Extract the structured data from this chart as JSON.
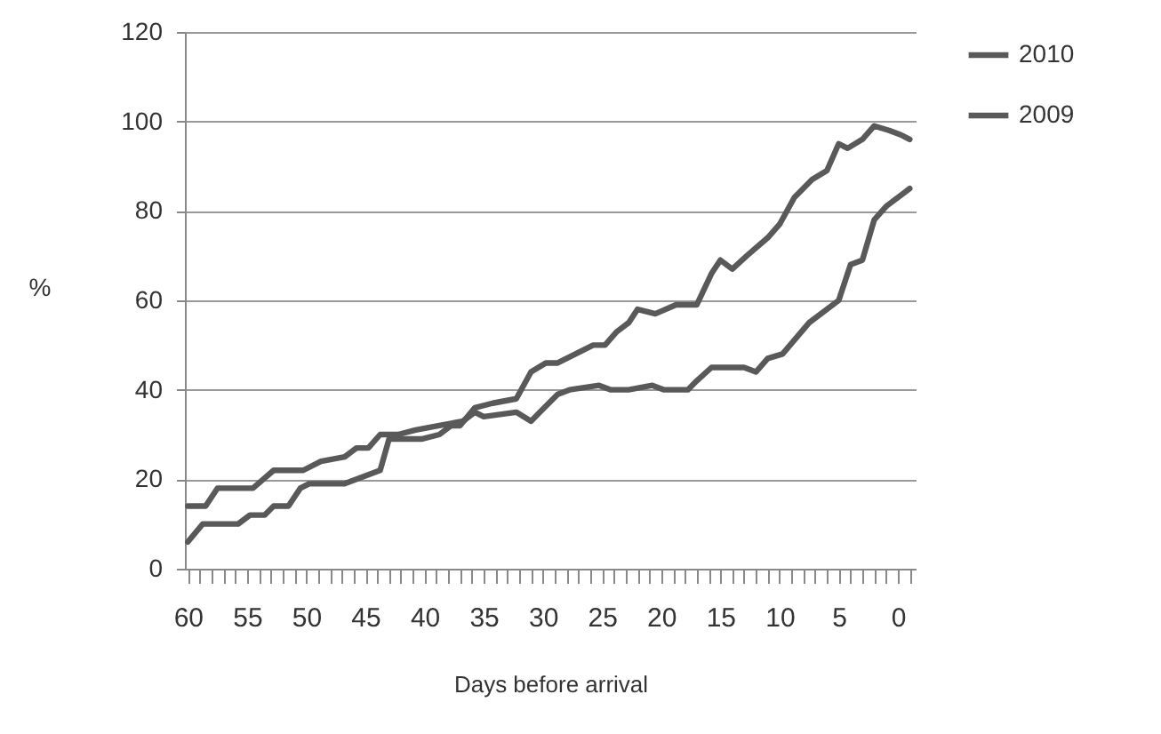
{
  "chart_data": {
    "type": "line",
    "xlabel": "Days before arrival",
    "ylabel": "%",
    "xlim": [
      60.25,
      -1.5
    ],
    "xticks": [
      60,
      {
        "value": 59,
        "label": null
      },
      {
        "value": 58,
        "label": null
      },
      {
        "value": 57,
        "label": null
      },
      {
        "value": 56,
        "label": null
      },
      55,
      {
        "value": 54,
        "label": null
      },
      {
        "value": 53,
        "label": null
      },
      {
        "value": 52,
        "label": null
      },
      {
        "value": 51,
        "label": null
      },
      50,
      {
        "value": 49,
        "label": null
      },
      {
        "value": 48,
        "label": null
      },
      {
        "value": 47,
        "label": null
      },
      {
        "value": 46,
        "label": null
      },
      45,
      {
        "value": 44,
        "label": null
      },
      {
        "value": 43,
        "label": null
      },
      {
        "value": 42,
        "label": null
      },
      {
        "value": 41,
        "label": null
      },
      40,
      {
        "value": 39,
        "label": null
      },
      {
        "value": 38,
        "label": null
      },
      {
        "value": 37,
        "label": null
      },
      {
        "value": 36,
        "label": null
      },
      35,
      {
        "value": 34,
        "label": null
      },
      {
        "value": 33,
        "label": null
      },
      {
        "value": 32,
        "label": null
      },
      {
        "value": 31,
        "label": null
      },
      30,
      {
        "value": 29,
        "label": null
      },
      {
        "value": 28,
        "label": null
      },
      {
        "value": 27,
        "label": null
      },
      {
        "value": 26,
        "label": null
      },
      25,
      {
        "value": 24,
        "label": null
      },
      {
        "value": 23,
        "label": null
      },
      {
        "value": 22,
        "label": null
      },
      {
        "value": 21,
        "label": null
      },
      20,
      {
        "value": 19,
        "label": null
      },
      {
        "value": 18,
        "label": null
      },
      {
        "value": 17,
        "label": null
      },
      {
        "value": 16,
        "label": null
      },
      15,
      {
        "value": 14,
        "label": null
      },
      {
        "value": 13,
        "label": null
      },
      {
        "value": 12,
        "label": null
      },
      {
        "value": 11,
        "label": null
      },
      10,
      {
        "value": 9,
        "label": null
      },
      {
        "value": 8,
        "label": null
      },
      {
        "value": 7,
        "label": null
      },
      {
        "value": 6,
        "label": null
      },
      5,
      {
        "value": 4,
        "label": null
      },
      {
        "value": 3,
        "label": null
      },
      {
        "value": 2,
        "label": null
      },
      {
        "value": 1,
        "label": null
      },
      0,
      {
        "value": -1,
        "label": null
      }
    ],
    "ylim": [
      0,
      120
    ],
    "yticks": [
      0,
      20,
      40,
      60,
      80,
      100,
      120
    ],
    "grid": "y",
    "legend": "right",
    "line_style": "solid",
    "series": [
      {
        "name": "2010",
        "color": "#595959",
        "x": [
          60,
          58.75,
          57.25,
          55.75,
          54.75,
          53.5,
          52.75,
          51.5,
          50.5,
          49.75,
          46.75,
          45.75,
          43.75,
          43,
          40.25,
          38.75,
          37.75,
          37,
          35.75,
          34.25,
          32.25,
          31,
          29.75,
          28.75,
          27.25,
          25.75,
          24.75,
          23.75,
          22.75,
          22,
          20.5,
          18.75,
          17,
          15.75,
          15,
          14,
          12.75,
          11,
          10,
          8.75,
          7.25,
          6,
          5,
          4.25,
          3,
          2,
          0.75,
          -0.25,
          -1
        ],
        "values": [
          6,
          10,
          10,
          10,
          12,
          12,
          14,
          14,
          18,
          19,
          19,
          20,
          22,
          29,
          29,
          30,
          32,
          32,
          36,
          37,
          38,
          44,
          46,
          46,
          48,
          50,
          50,
          53,
          55,
          58,
          57,
          59,
          59,
          66,
          69,
          67,
          70,
          74,
          77,
          83,
          87,
          89,
          95,
          94,
          96,
          99,
          98,
          97,
          96
        ]
      },
      {
        "name": "2009",
        "color": "#595959",
        "x": [
          60,
          58.5,
          57.5,
          54.5,
          52.75,
          50.25,
          48.75,
          46.75,
          45.75,
          44.75,
          43.75,
          42.25,
          40.75,
          38.75,
          36.75,
          35.75,
          35,
          32.25,
          31,
          30.25,
          28.75,
          27.75,
          25.25,
          24.25,
          22.75,
          20.75,
          19.75,
          17.75,
          17,
          15.75,
          13,
          12,
          11,
          9.75,
          7.5,
          5,
          4,
          3,
          2,
          1,
          -1
        ],
        "values": [
          14,
          14,
          18,
          18,
          22,
          22,
          24,
          25,
          27,
          27,
          30,
          30,
          31,
          32,
          33,
          35,
          34,
          35,
          33,
          35,
          39,
          40,
          41,
          40,
          40,
          41,
          40,
          40,
          42,
          45,
          45,
          44,
          47,
          48,
          55,
          60,
          68,
          69,
          78,
          81,
          85
        ]
      }
    ]
  }
}
